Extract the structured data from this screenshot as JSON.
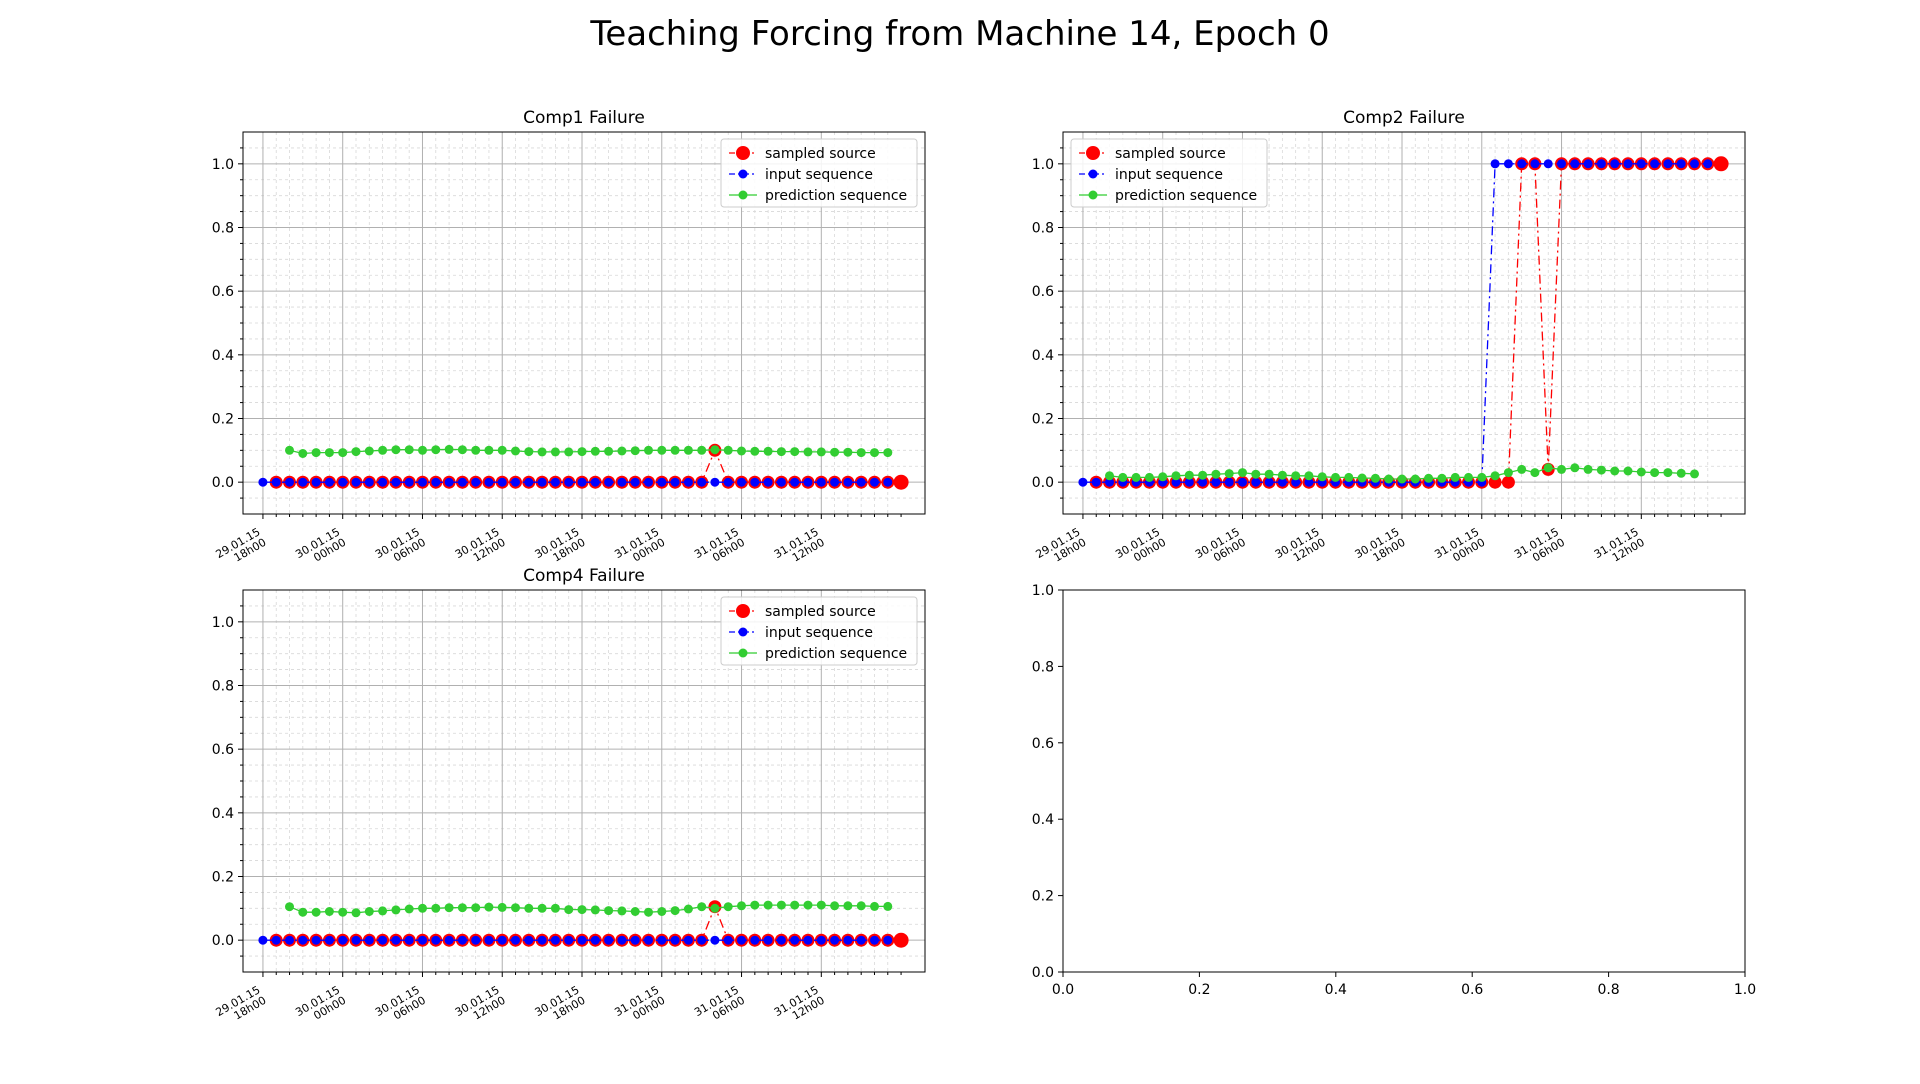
{
  "figure": {
    "title": "Teaching Forcing from Machine 14, Epoch 0"
  },
  "chart_data": [
    {
      "type": "line",
      "title": "Comp1 Failure",
      "xlabel": "",
      "ylabel": "",
      "ylim": [
        -0.1,
        1.1
      ],
      "grid": true,
      "legend_position": "top-right",
      "x_tick_labels": [
        "29.01.15 18h00",
        "30.01.15 00h00",
        "30.01.15 06h00",
        "30.01.15 12h00",
        "30.01.15 18h00",
        "31.01.15 00h00",
        "31.01.15 06h00",
        "31.01.15 12h00"
      ],
      "y_tick_labels": [
        "0.0",
        "0.2",
        "0.4",
        "0.6",
        "0.8",
        "1.0"
      ],
      "series": [
        {
          "name": "sampled source",
          "color": "#ff0000",
          "x_start": 1,
          "values": [
            0,
            0,
            0,
            0,
            0,
            0,
            0,
            0,
            0,
            0,
            0,
            0,
            0,
            0,
            0,
            0,
            0,
            0,
            0,
            0,
            0,
            0,
            0,
            0,
            0,
            0,
            0,
            0,
            0,
            0,
            0,
            0,
            0,
            0.1,
            0,
            0,
            0,
            0,
            0,
            0,
            0,
            0,
            0,
            0,
            0,
            0,
            0,
            0
          ]
        },
        {
          "name": "input sequence",
          "color": "#0000ff",
          "x_start": 0,
          "values": [
            0,
            0,
            0,
            0,
            0,
            0,
            0,
            0,
            0,
            0,
            0,
            0,
            0,
            0,
            0,
            0,
            0,
            0,
            0,
            0,
            0,
            0,
            0,
            0,
            0,
            0,
            0,
            0,
            0,
            0,
            0,
            0,
            0,
            0,
            0,
            0,
            0,
            0,
            0,
            0,
            0,
            0,
            0,
            0,
            0,
            0,
            0,
            0
          ]
        },
        {
          "name": "prediction sequence",
          "color": "#32cd32",
          "x_start": 2,
          "values": [
            0.1,
            0.09,
            0.093,
            0.093,
            0.093,
            0.096,
            0.098,
            0.1,
            0.102,
            0.102,
            0.1,
            0.102,
            0.103,
            0.102,
            0.1,
            0.1,
            0.1,
            0.098,
            0.096,
            0.095,
            0.095,
            0.095,
            0.096,
            0.097,
            0.097,
            0.098,
            0.099,
            0.1,
            0.1,
            0.1,
            0.1,
            0.1,
            0.102,
            0.1,
            0.098,
            0.097,
            0.097,
            0.096,
            0.096,
            0.095,
            0.095,
            0.094,
            0.094,
            0.093,
            0.093,
            0.093
          ]
        }
      ]
    },
    {
      "type": "line",
      "title": "Comp2 Failure",
      "xlabel": "",
      "ylabel": "",
      "ylim": [
        -0.1,
        1.1
      ],
      "grid": true,
      "legend_position": "top-left",
      "x_tick_labels": [
        "29.01.15 18h00",
        "30.01.15 00h00",
        "30.01.15 06h00",
        "30.01.15 12h00",
        "30.01.15 18h00",
        "31.01.15 00h00",
        "31.01.15 06h00",
        "31.01.15 12h00"
      ],
      "y_tick_labels": [
        "0.0",
        "0.2",
        "0.4",
        "0.6",
        "0.8",
        "1.0"
      ],
      "series": [
        {
          "name": "sampled source",
          "color": "#ff0000",
          "x_start": 1,
          "values": [
            0,
            0,
            0,
            0,
            0,
            0,
            0,
            0,
            0,
            0,
            0,
            0,
            0,
            0,
            0,
            0,
            0,
            0,
            0,
            0,
            0,
            0,
            0,
            0,
            0,
            0,
            0,
            0,
            0,
            0,
            0,
            0,
            1,
            1,
            0.04,
            1,
            1,
            1,
            1,
            1,
            1,
            1,
            1,
            1,
            1,
            1,
            1,
            1
          ]
        },
        {
          "name": "input sequence",
          "color": "#0000ff",
          "x_start": 0,
          "values": [
            0,
            0,
            0,
            0,
            0,
            0,
            0,
            0,
            0,
            0,
            0,
            0,
            0,
            0,
            0,
            0,
            0,
            0,
            0,
            0,
            0,
            0,
            0,
            0,
            0,
            0,
            0,
            0,
            0,
            0,
            0,
            1,
            1,
            1,
            1,
            1,
            1,
            1,
            1,
            1,
            1,
            1,
            1,
            1,
            1,
            1,
            1,
            1
          ]
        },
        {
          "name": "prediction sequence",
          "color": "#32cd32",
          "x_start": 2,
          "values": [
            0.02,
            0.015,
            0.015,
            0.015,
            0.017,
            0.02,
            0.022,
            0.022,
            0.025,
            0.027,
            0.03,
            0.025,
            0.025,
            0.022,
            0.02,
            0.02,
            0.017,
            0.015,
            0.015,
            0.013,
            0.012,
            0.01,
            0.01,
            0.01,
            0.012,
            0.012,
            0.015,
            0.015,
            0.015,
            0.02,
            0.03,
            0.04,
            0.03,
            0.045,
            0.04,
            0.045,
            0.04,
            0.038,
            0.035,
            0.035,
            0.032,
            0.03,
            0.03,
            0.028,
            0.026
          ]
        }
      ]
    },
    {
      "type": "line",
      "title": "Comp4 Failure",
      "xlabel": "",
      "ylabel": "",
      "ylim": [
        -0.1,
        1.1
      ],
      "grid": true,
      "legend_position": "top-right",
      "x_tick_labels": [
        "29.01.15 18h00",
        "30.01.15 00h00",
        "30.01.15 06h00",
        "30.01.15 12h00",
        "30.01.15 18h00",
        "31.01.15 00h00",
        "31.01.15 06h00",
        "31.01.15 12h00"
      ],
      "y_tick_labels": [
        "0.0",
        "0.2",
        "0.4",
        "0.6",
        "0.8",
        "1.0"
      ],
      "series": [
        {
          "name": "sampled source",
          "color": "#ff0000",
          "x_start": 1,
          "values": [
            0,
            0,
            0,
            0,
            0,
            0,
            0,
            0,
            0,
            0,
            0,
            0,
            0,
            0,
            0,
            0,
            0,
            0,
            0,
            0,
            0,
            0,
            0,
            0,
            0,
            0,
            0,
            0,
            0,
            0,
            0,
            0,
            0,
            0.105,
            0,
            0,
            0,
            0,
            0,
            0,
            0,
            0,
            0,
            0,
            0,
            0,
            0,
            0
          ]
        },
        {
          "name": "input sequence",
          "color": "#0000ff",
          "x_start": 0,
          "values": [
            0,
            0,
            0,
            0,
            0,
            0,
            0,
            0,
            0,
            0,
            0,
            0,
            0,
            0,
            0,
            0,
            0,
            0,
            0,
            0,
            0,
            0,
            0,
            0,
            0,
            0,
            0,
            0,
            0,
            0,
            0,
            0,
            0,
            0,
            0,
            0,
            0,
            0,
            0,
            0,
            0,
            0,
            0,
            0,
            0,
            0,
            0,
            0
          ]
        },
        {
          "name": "prediction sequence",
          "color": "#32cd32",
          "x_start": 2,
          "values": [
            0.105,
            0.088,
            0.088,
            0.09,
            0.088,
            0.086,
            0.09,
            0.092,
            0.095,
            0.098,
            0.1,
            0.1,
            0.102,
            0.102,
            0.102,
            0.104,
            0.103,
            0.102,
            0.1,
            0.1,
            0.1,
            0.096,
            0.096,
            0.095,
            0.093,
            0.092,
            0.09,
            0.088,
            0.09,
            0.093,
            0.098,
            0.105,
            0.1,
            0.105,
            0.108,
            0.11,
            0.11,
            0.11,
            0.11,
            0.11,
            0.11,
            0.108,
            0.108,
            0.108,
            0.106,
            0.106
          ]
        }
      ]
    },
    {
      "type": "line",
      "title": "",
      "xlabel": "",
      "ylabel": "",
      "xlim": [
        0,
        1
      ],
      "ylim": [
        0,
        1
      ],
      "grid": false,
      "x_tick_labels": [
        "0.0",
        "0.2",
        "0.4",
        "0.6",
        "0.8",
        "1.0"
      ],
      "y_tick_labels": [
        "0.0",
        "0.2",
        "0.4",
        "0.6",
        "0.8",
        "1.0"
      ],
      "series": []
    }
  ]
}
